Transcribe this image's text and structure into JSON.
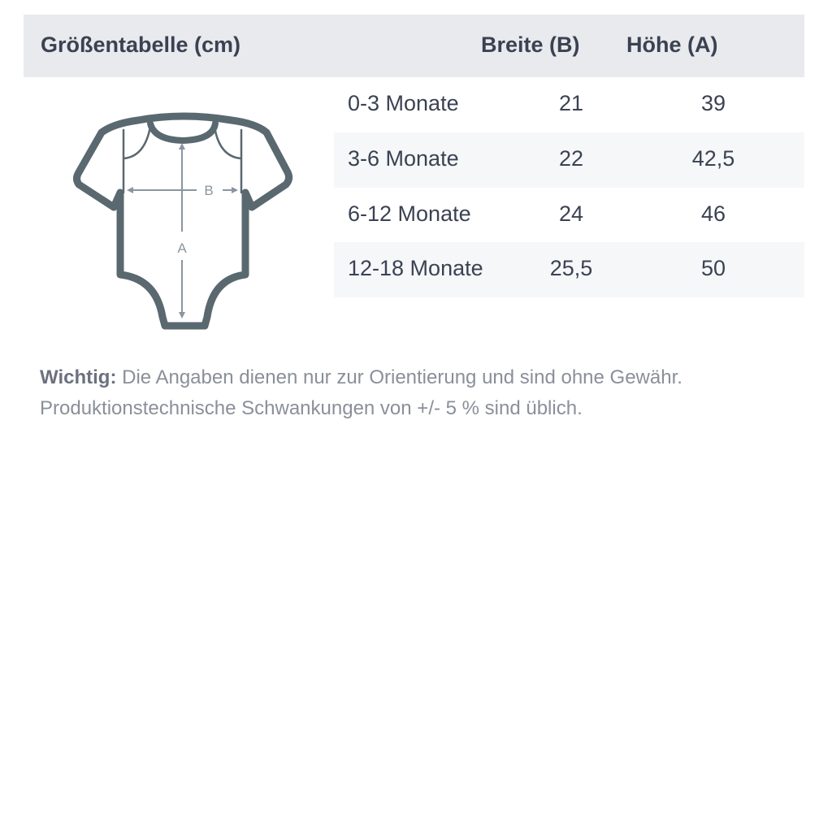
{
  "header": {
    "title": "Größentabelle (cm)",
    "col_width": "Breite (B)",
    "col_height": "Höhe (A)"
  },
  "rows": [
    {
      "size": "0-3 Monate",
      "width": "21",
      "height": "39"
    },
    {
      "size": "3-6 Monate",
      "width": "22",
      "height": "42,5"
    },
    {
      "size": "6-12 Monate",
      "width": "24",
      "height": "46"
    },
    {
      "size": "12-18 Monate",
      "width": "25,5",
      "height": "50"
    }
  ],
  "diagram": {
    "label_b": "B",
    "label_a": "A",
    "icon": "baby-bodysuit-icon"
  },
  "note": {
    "label": "Wichtig:",
    "line1": "Die Angaben dienen nur zur Orientierung und sind ohne Gewähr.",
    "line2": "Produktionstechnische Schwankungen von +/- 5 % sind üblich."
  },
  "colors": {
    "header_bg": "#e9eaee",
    "alt_row_bg": "#f6f7f9",
    "text": "#3a4252",
    "icon": "#5a6870"
  }
}
